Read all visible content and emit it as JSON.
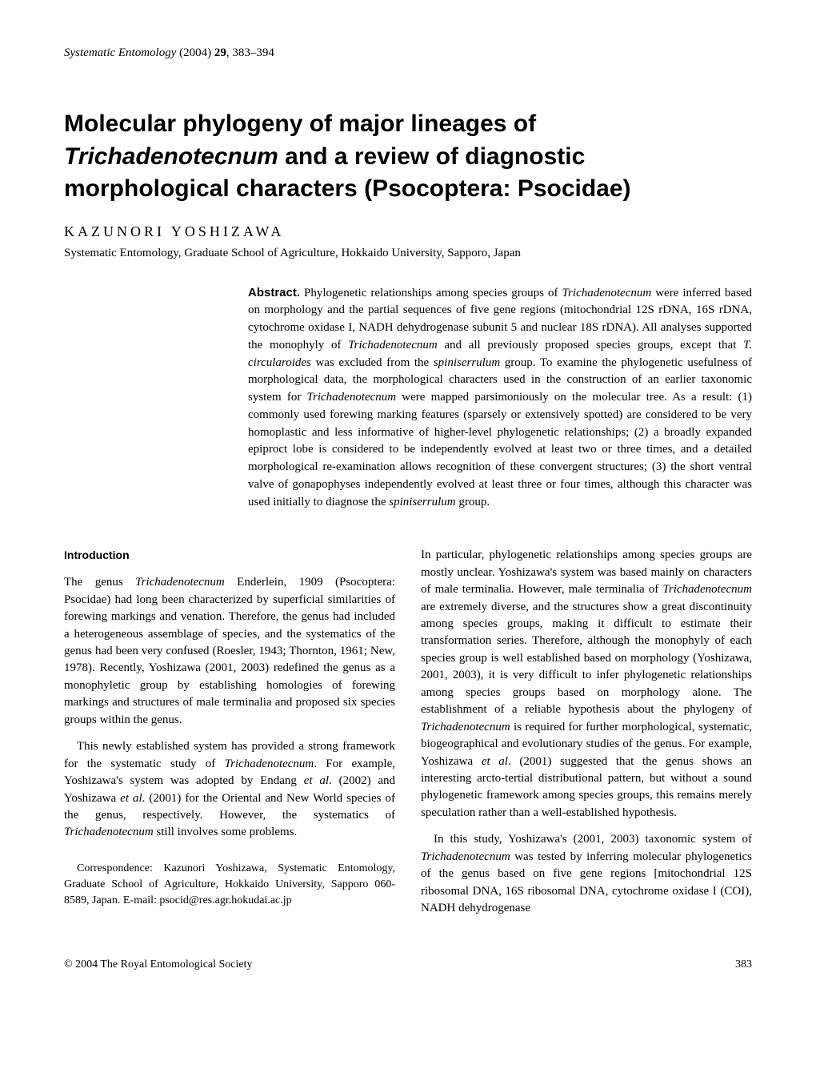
{
  "header": {
    "journal": "Systematic Entomology",
    "year": "(2004)",
    "volume": "29",
    "pages": ", 383–394"
  },
  "title": {
    "pre": "Molecular phylogeny of major lineages of ",
    "genus": "Trichadenotecnum",
    "post": " and a review of diagnostic morphological characters (Psocoptera: Psocidae)"
  },
  "authors": "KAZUNORI YOSHIZAWA",
  "affiliation": "Systematic Entomology, Graduate School of Agriculture, Hokkaido University, Sapporo, Japan",
  "abstract": {
    "label": "Abstract.",
    "text_1": " Phylogenetic relationships among species groups of ",
    "genus_1": "Trichadenotecnum",
    "text_2": " were inferred based on morphology and the partial sequences of five gene regions (mitochondrial 12S rDNA, 16S rDNA, cytochrome oxidase I, NADH dehydrogenase subunit 5 and nuclear 18S rDNA). All analyses supported the monophyly of ",
    "genus_2": "Trichadenotecnum",
    "text_3": " and all previously proposed species groups, except that ",
    "species_1": "T. circularoides",
    "text_4": " was excluded from the ",
    "group_1": "spiniserrulum",
    "text_5": " group. To examine the phylogenetic usefulness of morphological data, the morphological characters used in the construction of an earlier taxonomic system for ",
    "genus_3": "Trichadenotecnum",
    "text_6": " were mapped parsimoniously on the molecular tree. As a result: (1) commonly used forewing marking features (sparsely or extensively spotted) are considered to be very homoplastic and less informative of higher-level phylogenetic relationships; (2) a broadly expanded epiproct lobe is considered to be independently evolved at least two or three times, and a detailed morphological re-examination allows recognition of these convergent structures; (3) the short ventral valve of gonapophyses independently evolved at least three or four times, although this character was used initially to diagnose the ",
    "group_2": "spiniserrulum",
    "text_7": " group."
  },
  "intro_heading": "Introduction",
  "left_col": {
    "p1_a": "The genus ",
    "p1_genus": "Trichadenotecnum",
    "p1_b": " Enderlein, 1909 (Psocoptera: Psocidae) had long been characterized by superficial similarities of forewing markings and venation. Therefore, the genus had included a heterogeneous assemblage of species, and the systematics of the genus had been very confused (Roesler, 1943; Thornton, 1961; New, 1978). Recently, Yoshizawa (2001, 2003) redefined the genus as a monophyletic group by establishing homologies of forewing markings and structures of male terminalia and proposed six species groups within the genus.",
    "p2_a": "This newly established system has provided a strong framework for the systematic study of ",
    "p2_genus": "Trichadenotecnum",
    "p2_b": ". For example, Yoshizawa's system was adopted by Endang ",
    "p2_etal1": "et al",
    "p2_c": ". (2002) and Yoshizawa ",
    "p2_etal2": "et al",
    "p2_d": ". (2001) for the Oriental and New World species of the genus, respectively. However, the systematics of ",
    "p2_genus2": "Trichadenotecnum",
    "p2_e": " still involves some problems."
  },
  "right_col": {
    "p1_a": "In particular, phylogenetic relationships among species groups are mostly unclear. Yoshizawa's system was based mainly on characters of male terminalia. However, male terminalia of ",
    "p1_genus": "Trichadenotecnum",
    "p1_b": " are extremely diverse, and the structures show a great discontinuity among species groups, making it difficult to estimate their transformation series. Therefore, although the monophyly of each species group is well established based on morphology (Yoshizawa, 2001, 2003), it is very difficult to infer phylogenetic relationships among species groups based on morphology alone. The establishment of a reliable hypothesis about the phylogeny of ",
    "p1_genus2": "Trichadenotecnum",
    "p1_c": " is required for further morphological, systematic, biogeographical and evolutionary studies of the genus. For example, Yoshizawa ",
    "p1_etal": "et al",
    "p1_d": ". (2001) suggested that the genus shows an interesting arcto-tertial distributional pattern, but without a sound phylogenetic framework among species groups, this remains merely speculation rather than a well-established hypothesis.",
    "p2_a": "In this study, Yoshizawa's (2001, 2003) taxonomic system of ",
    "p2_genus": "Trichadenotecnum",
    "p2_b": " was tested by inferring molecular phylogenetics of the genus based on five gene regions [mitochondrial 12S ribosomal DNA, 16S ribosomal DNA, cytochrome oxidase I (COI), NADH dehydrogenase"
  },
  "correspondence": "Correspondence: Kazunori Yoshizawa, Systematic Entomology, Graduate School of Agriculture, Hokkaido University, Sapporo 060-8589, Japan. E-mail: psocid@res.agr.hokudai.ac.jp",
  "footer": {
    "copyright": "© 2004 The Royal Entomological Society",
    "page": "383"
  }
}
